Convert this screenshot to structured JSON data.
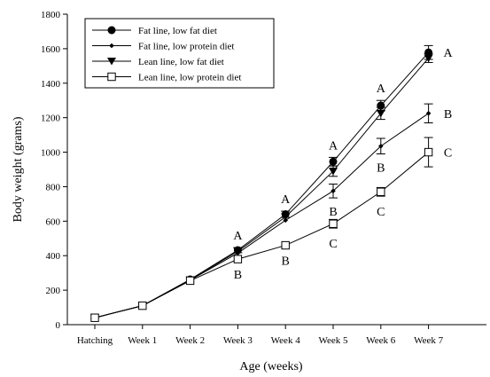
{
  "chart_data": {
    "type": "line",
    "xlabel": "Age (weeks)",
    "ylabel": "Body weight (grams)",
    "categories": [
      "Hatching",
      "Week 1",
      "Week 2",
      "Week 3",
      "Week 4",
      "Week 5",
      "Week 6",
      "Week 7"
    ],
    "ylim": [
      0,
      1800
    ],
    "yticks": [
      0,
      200,
      400,
      600,
      800,
      1000,
      1200,
      1400,
      1600,
      1800
    ],
    "grid": false,
    "legend_position": "top-left",
    "series": [
      {
        "name": "Fat line, low fat diet",
        "marker": "filled-circle",
        "values": [
          40,
          110,
          262,
          432,
          640,
          945,
          1270,
          1578
        ],
        "errors": [
          0,
          0,
          0,
          15,
          18,
          25,
          30,
          40
        ]
      },
      {
        "name": "Fat line, low protein diet",
        "marker": "small-diamond",
        "values": [
          40,
          110,
          258,
          415,
          605,
          775,
          1035,
          1225
        ],
        "errors": [
          0,
          0,
          0,
          0,
          0,
          40,
          45,
          55
        ]
      },
      {
        "name": "Lean line, low fat diet",
        "marker": "filled-triangle-down",
        "values": [
          40,
          110,
          260,
          425,
          625,
          890,
          1225,
          1545
        ],
        "errors": [
          0,
          0,
          0,
          0,
          0,
          30,
          35,
          25
        ]
      },
      {
        "name": "Lean line, low protein diet",
        "marker": "open-square",
        "values": [
          40,
          110,
          255,
          380,
          460,
          585,
          770,
          1000
        ],
        "errors": [
          0,
          0,
          0,
          0,
          0,
          25,
          25,
          85
        ]
      }
    ],
    "annotations": [
      {
        "text": "A",
        "category": "Week 3",
        "side": "above"
      },
      {
        "text": "B",
        "category": "Week 3",
        "side": "below"
      },
      {
        "text": "A",
        "category": "Week 4",
        "side": "above"
      },
      {
        "text": "B",
        "category": "Week 4",
        "side": "below"
      },
      {
        "text": "A",
        "category": "Week 5",
        "side": "above"
      },
      {
        "text": "B",
        "category": "Week 5",
        "side": "middle"
      },
      {
        "text": "C",
        "category": "Week 5",
        "side": "below"
      },
      {
        "text": "A",
        "category": "Week 6",
        "side": "above"
      },
      {
        "text": "B",
        "category": "Week 6",
        "side": "middle"
      },
      {
        "text": "C",
        "category": "Week 6",
        "side": "below"
      },
      {
        "text": "A",
        "category": "Week 7",
        "side": "right",
        "series": 0
      },
      {
        "text": "B",
        "category": "Week 7",
        "side": "right",
        "series": 1
      },
      {
        "text": "C",
        "category": "Week 7",
        "side": "right",
        "series": 3
      }
    ]
  }
}
